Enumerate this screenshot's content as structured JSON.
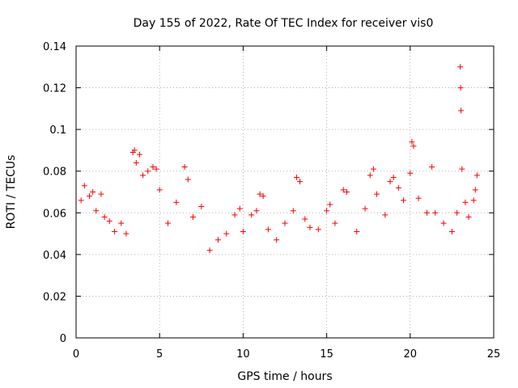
{
  "chart_data": {
    "type": "scatter",
    "title": "Day 155 of 2022, Rate Of TEC Index for receiver vis0",
    "xlabel": "GPS time / hours",
    "ylabel": "ROTI / TECUs",
    "xlim": [
      0,
      25
    ],
    "ylim": [
      0,
      0.14
    ],
    "xticks": [
      0,
      5,
      10,
      15,
      20,
      25
    ],
    "yticks": [
      0,
      0.02,
      0.04,
      0.06,
      0.08,
      0.1,
      0.12,
      0.14
    ],
    "xtick_labels": [
      "0",
      "5",
      "10",
      "15",
      "20",
      "25"
    ],
    "ytick_labels": [
      "0",
      "0.02",
      "0.04",
      "0.06",
      "0.08",
      "0.1",
      "0.12",
      "0.14"
    ],
    "grid": true,
    "legend": false,
    "marker": "plus",
    "color": "#ff0000",
    "background": "#ffffff",
    "series": [
      {
        "points": [
          [
            0.3,
            0.066
          ],
          [
            0.5,
            0.073
          ],
          [
            0.8,
            0.068
          ],
          [
            1.0,
            0.07
          ],
          [
            1.2,
            0.061
          ],
          [
            1.5,
            0.069
          ],
          [
            1.7,
            0.058
          ],
          [
            2.0,
            0.056
          ],
          [
            2.3,
            0.051
          ],
          [
            2.7,
            0.055
          ],
          [
            3.0,
            0.05
          ],
          [
            3.4,
            0.089
          ],
          [
            3.5,
            0.09
          ],
          [
            3.6,
            0.084
          ],
          [
            3.8,
            0.088
          ],
          [
            4.0,
            0.078
          ],
          [
            4.3,
            0.08
          ],
          [
            4.6,
            0.082
          ],
          [
            4.8,
            0.081
          ],
          [
            5.0,
            0.071
          ],
          [
            5.5,
            0.055
          ],
          [
            6.0,
            0.065
          ],
          [
            6.5,
            0.082
          ],
          [
            6.7,
            0.076
          ],
          [
            7.0,
            0.058
          ],
          [
            7.5,
            0.063
          ],
          [
            8.0,
            0.042
          ],
          [
            8.5,
            0.047
          ],
          [
            9.0,
            0.05
          ],
          [
            9.5,
            0.059
          ],
          [
            9.8,
            0.062
          ],
          [
            10.0,
            0.051
          ],
          [
            10.5,
            0.059
          ],
          [
            10.8,
            0.061
          ],
          [
            11.0,
            0.069
          ],
          [
            11.2,
            0.068
          ],
          [
            11.5,
            0.052
          ],
          [
            12.0,
            0.047
          ],
          [
            12.5,
            0.055
          ],
          [
            13.0,
            0.061
          ],
          [
            13.2,
            0.077
          ],
          [
            13.4,
            0.075
          ],
          [
            13.7,
            0.057
          ],
          [
            14.0,
            0.053
          ],
          [
            14.5,
            0.052
          ],
          [
            15.0,
            0.061
          ],
          [
            15.2,
            0.064
          ],
          [
            15.5,
            0.055
          ],
          [
            16.0,
            0.071
          ],
          [
            16.2,
            0.07
          ],
          [
            16.8,
            0.051
          ],
          [
            17.3,
            0.062
          ],
          [
            17.6,
            0.078
          ],
          [
            17.8,
            0.081
          ],
          [
            18.0,
            0.069
          ],
          [
            18.5,
            0.059
          ],
          [
            18.8,
            0.075
          ],
          [
            19.0,
            0.077
          ],
          [
            19.3,
            0.072
          ],
          [
            19.6,
            0.066
          ],
          [
            20.0,
            0.079
          ],
          [
            20.1,
            0.094
          ],
          [
            20.2,
            0.092
          ],
          [
            20.5,
            0.067
          ],
          [
            21.0,
            0.06
          ],
          [
            21.3,
            0.082
          ],
          [
            21.5,
            0.06
          ],
          [
            22.0,
            0.055
          ],
          [
            22.5,
            0.051
          ],
          [
            22.8,
            0.06
          ],
          [
            23.0,
            0.13
          ],
          [
            23.02,
            0.12
          ],
          [
            23.04,
            0.109
          ],
          [
            23.1,
            0.081
          ],
          [
            23.3,
            0.065
          ],
          [
            23.5,
            0.058
          ],
          [
            23.8,
            0.066
          ],
          [
            23.9,
            0.071
          ],
          [
            24.0,
            0.078
          ]
        ]
      }
    ]
  }
}
